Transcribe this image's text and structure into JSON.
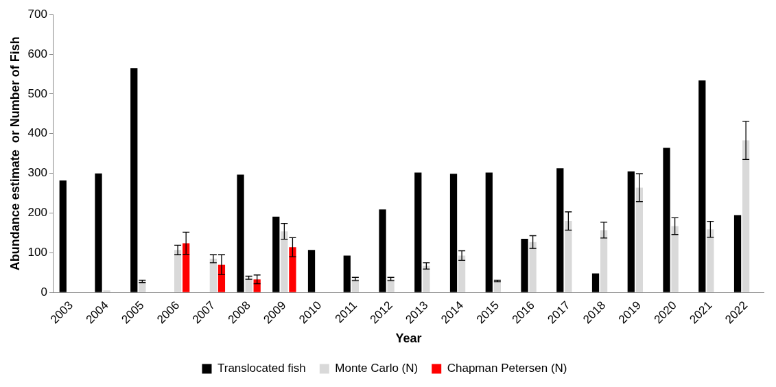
{
  "chart_data": {
    "type": "bar",
    "xlabel": "Year",
    "ylabel": "Abundance estimate  or Number of Fish",
    "categories": [
      "2003",
      "2004",
      "2005",
      "2006",
      "2007",
      "2008",
      "2009",
      "2010",
      "2011",
      "2012",
      "2013",
      "2014",
      "2015",
      "2016",
      "2017",
      "2018",
      "2019",
      "2020",
      "2021",
      "2022"
    ],
    "series": [
      {
        "name": "Translocated fish",
        "color": "#000000",
        "values": [
          282,
          300,
          565,
          null,
          null,
          297,
          191,
          107,
          93,
          209,
          302,
          299,
          302,
          135,
          313,
          48,
          305,
          364,
          534,
          195
        ]
      },
      {
        "name": "Monte Carlo (N)",
        "color": "#d9d9d9",
        "values": [
          null,
          5,
          28,
          107,
          85,
          37,
          154,
          null,
          34,
          34,
          67,
          93,
          29,
          127,
          180,
          157,
          264,
          167,
          159,
          383
        ],
        "errors": [
          null,
          null,
          3,
          12,
          10,
          4,
          20,
          null,
          4,
          4,
          8,
          12,
          2,
          16,
          23,
          20,
          35,
          21,
          20,
          48
        ]
      },
      {
        "name": "Chapman Petersen (N)",
        "color": "#ff0000",
        "values": [
          null,
          null,
          null,
          124,
          70,
          33,
          114,
          null,
          null,
          null,
          null,
          null,
          null,
          null,
          null,
          null,
          null,
          null,
          null,
          null
        ],
        "errors": [
          null,
          null,
          null,
          28,
          25,
          11,
          24,
          null,
          null,
          null,
          null,
          null,
          null,
          null,
          null,
          null,
          null,
          null,
          null,
          null
        ]
      }
    ],
    "ylim": [
      0,
      700
    ],
    "yticks": [
      0,
      100,
      200,
      300,
      400,
      500,
      600,
      700
    ],
    "grid": false,
    "legend": "bottom"
  }
}
